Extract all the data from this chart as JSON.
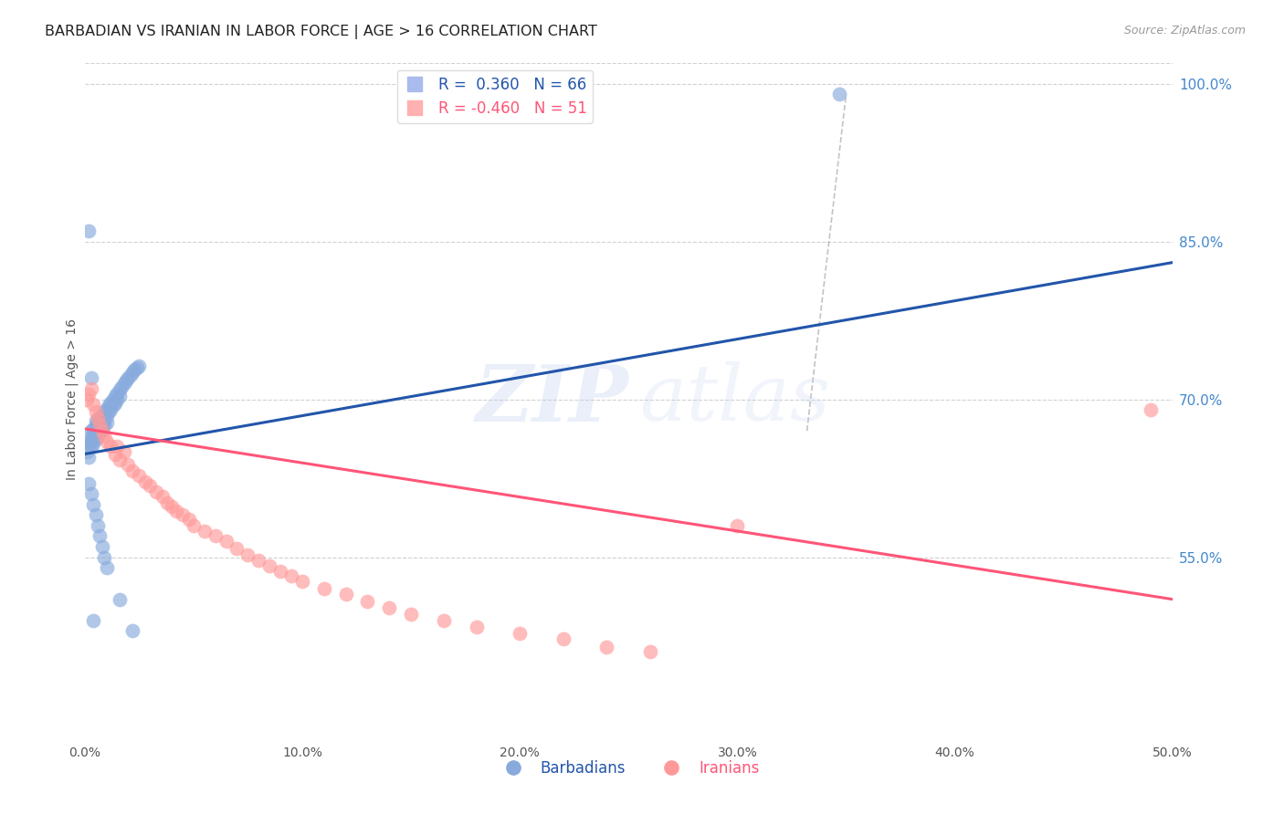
{
  "title": "BARBADIAN VS IRANIAN IN LABOR FORCE | AGE > 16 CORRELATION CHART",
  "source": "Source: ZipAtlas.com",
  "ylabel": "In Labor Force | Age > 16",
  "xlim": [
    0.0,
    0.5
  ],
  "ylim": [
    0.38,
    1.02
  ],
  "xticks": [
    0.0,
    0.1,
    0.2,
    0.3,
    0.4,
    0.5
  ],
  "yticks_right": [
    0.55,
    0.7,
    0.85,
    1.0
  ],
  "R_barbadian": 0.36,
  "N_barbadian": 66,
  "R_iranian": -0.46,
  "N_iranian": 51,
  "blue_color": "#88AADD",
  "pink_color": "#FF9999",
  "blue_line_color": "#2255AA",
  "pink_line_color": "#FF5577",
  "blue_label_color": "#2255AA",
  "pink_label_color": "#FF5577",
  "right_axis_color": "#4488CC",
  "watermark_zip_color": "#BBCCEE",
  "watermark_atlas_color": "#BBCCEE",
  "grid_color": "#CCCCCC",
  "background_color": "#FFFFFF",
  "title_color": "#222222",
  "source_color": "#999999",
  "ylabel_color": "#555555",
  "xtick_color": "#555555",
  "barbadian_x": [
    0.001,
    0.002,
    0.002,
    0.002,
    0.003,
    0.003,
    0.003,
    0.003,
    0.004,
    0.004,
    0.004,
    0.005,
    0.005,
    0.005,
    0.005,
    0.006,
    0.006,
    0.006,
    0.007,
    0.007,
    0.007,
    0.008,
    0.008,
    0.008,
    0.009,
    0.009,
    0.009,
    0.01,
    0.01,
    0.01,
    0.011,
    0.011,
    0.012,
    0.012,
    0.013,
    0.013,
    0.014,
    0.014,
    0.015,
    0.015,
    0.016,
    0.016,
    0.017,
    0.018,
    0.019,
    0.02,
    0.021,
    0.022,
    0.023,
    0.024,
    0.025,
    0.002,
    0.003,
    0.004,
    0.005,
    0.006,
    0.007,
    0.008,
    0.009,
    0.01,
    0.002,
    0.003,
    0.004,
    0.016,
    0.022,
    0.347
  ],
  "barbadian_y": [
    0.65,
    0.655,
    0.645,
    0.66,
    0.67,
    0.665,
    0.66,
    0.655,
    0.672,
    0.665,
    0.658,
    0.675,
    0.668,
    0.662,
    0.68,
    0.678,
    0.672,
    0.665,
    0.682,
    0.676,
    0.67,
    0.685,
    0.678,
    0.672,
    0.688,
    0.68,
    0.675,
    0.691,
    0.684,
    0.678,
    0.694,
    0.688,
    0.697,
    0.69,
    0.7,
    0.694,
    0.703,
    0.696,
    0.706,
    0.7,
    0.709,
    0.703,
    0.712,
    0.715,
    0.718,
    0.72,
    0.723,
    0.726,
    0.728,
    0.73,
    0.732,
    0.62,
    0.61,
    0.6,
    0.59,
    0.58,
    0.57,
    0.56,
    0.55,
    0.54,
    0.86,
    0.72,
    0.49,
    0.51,
    0.48,
    0.99
  ],
  "iranian_x": [
    0.001,
    0.002,
    0.003,
    0.004,
    0.005,
    0.006,
    0.007,
    0.008,
    0.009,
    0.01,
    0.012,
    0.014,
    0.015,
    0.016,
    0.018,
    0.02,
    0.022,
    0.025,
    0.028,
    0.03,
    0.033,
    0.036,
    0.038,
    0.04,
    0.042,
    0.045,
    0.048,
    0.05,
    0.055,
    0.06,
    0.065,
    0.07,
    0.075,
    0.08,
    0.085,
    0.09,
    0.095,
    0.1,
    0.11,
    0.12,
    0.13,
    0.14,
    0.15,
    0.165,
    0.18,
    0.2,
    0.22,
    0.24,
    0.26,
    0.3,
    0.49
  ],
  "iranian_y": [
    0.7,
    0.705,
    0.71,
    0.695,
    0.688,
    0.682,
    0.676,
    0.67,
    0.665,
    0.66,
    0.655,
    0.648,
    0.655,
    0.642,
    0.65,
    0.638,
    0.632,
    0.628,
    0.622,
    0.618,
    0.612,
    0.608,
    0.602,
    0.598,
    0.594,
    0.59,
    0.586,
    0.58,
    0.575,
    0.57,
    0.565,
    0.558,
    0.552,
    0.547,
    0.542,
    0.537,
    0.532,
    0.527,
    0.52,
    0.515,
    0.508,
    0.502,
    0.496,
    0.49,
    0.484,
    0.478,
    0.472,
    0.465,
    0.46,
    0.58,
    0.69
  ],
  "diag_line_x": [
    0.332,
    0.35
  ],
  "diag_line_y": [
    0.67,
    0.99
  ],
  "blue_trend_x": [
    0.0,
    0.5
  ],
  "blue_trend_y": [
    0.648,
    0.83
  ],
  "pink_trend_x": [
    0.0,
    0.5
  ],
  "pink_trend_y": [
    0.672,
    0.51
  ]
}
